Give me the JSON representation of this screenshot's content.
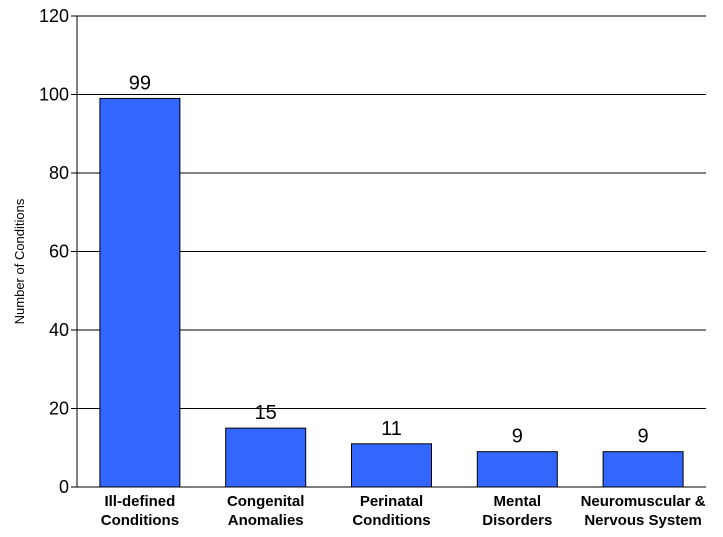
{
  "chart_data": {
    "type": "bar",
    "title": "",
    "xlabel": "",
    "ylabel": "Number of Conditions",
    "ylim": [
      0,
      120
    ],
    "yticks": [
      0,
      20,
      40,
      60,
      80,
      100,
      120
    ],
    "grid": true,
    "categories": [
      [
        "Ill-defined",
        "Conditions"
      ],
      [
        "Congenital",
        "Anomalies"
      ],
      [
        "Perinatal",
        "Conditions"
      ],
      [
        "Mental",
        "Disorders"
      ],
      [
        "Neuromuscular &",
        "Nervous System"
      ]
    ],
    "values": [
      99,
      15,
      11,
      9,
      9
    ],
    "data_labels": [
      "99",
      "15",
      "11",
      "9",
      "9"
    ],
    "bar_color": "#3366ff",
    "bar_edge_color": "#000000",
    "grid_color": "#000000"
  }
}
